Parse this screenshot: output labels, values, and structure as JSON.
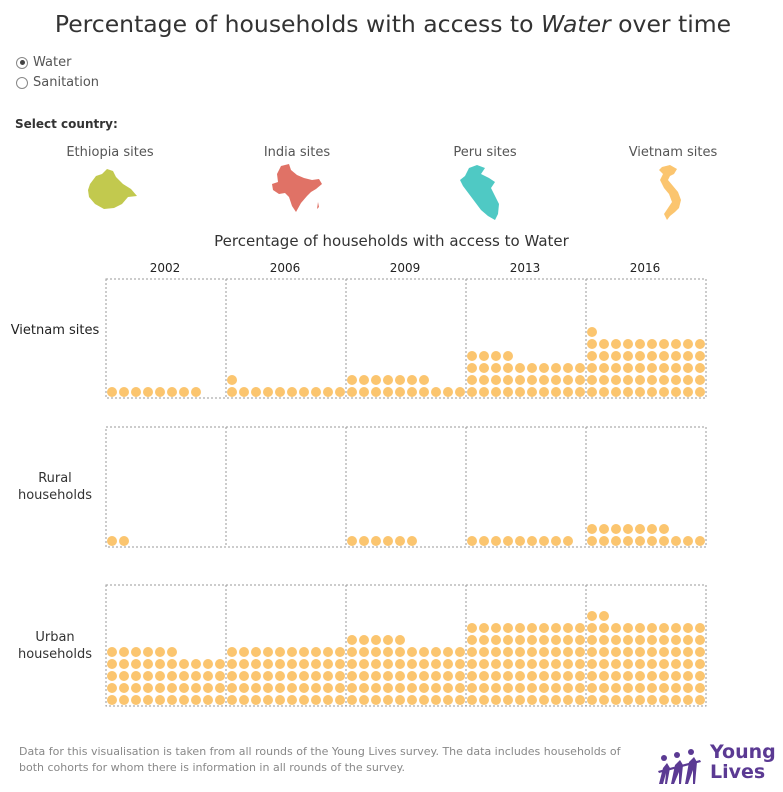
{
  "title": {
    "prefix": "Percentage of households with access to ",
    "emphasis": "Water",
    "suffix": " over time"
  },
  "options": [
    {
      "label": "Water",
      "selected": true
    },
    {
      "label": "Sanitation",
      "selected": false
    }
  ],
  "select_country_label": "Select country:",
  "countries": [
    {
      "label": "Ethiopia sites",
      "color": "#c2c94e"
    },
    {
      "label": "India sites",
      "color": "#e07266"
    },
    {
      "label": "Peru sites",
      "color": "#4fc9c4"
    },
    {
      "label": "Vietnam sites",
      "color": "#fbc56f"
    }
  ],
  "chart_data": {
    "type": "dot-matrix",
    "title": "Percentage of households with access to Water",
    "columns": [
      "2002",
      "2006",
      "2009",
      "2013",
      "2016"
    ],
    "rows": [
      {
        "label": "Vietnam sites",
        "dots": [
          8,
          11,
          17,
          34,
          51
        ]
      },
      {
        "label": "Rural households",
        "dots": [
          2,
          0,
          6,
          9,
          17
        ]
      },
      {
        "label": "Urban households",
        "dots": [
          46,
          50,
          55,
          70,
          72
        ]
      }
    ],
    "dot_color": "#fbc56f",
    "dots_per_row": 10
  },
  "footer": "Data for this visualisation is taken from all rounds of the Young Lives survey. The data includes households of both cohorts for whom there is information in all rounds of the survey.",
  "logo": {
    "line1": "Young",
    "line2": "Lives",
    "color": "#5b3a93"
  }
}
